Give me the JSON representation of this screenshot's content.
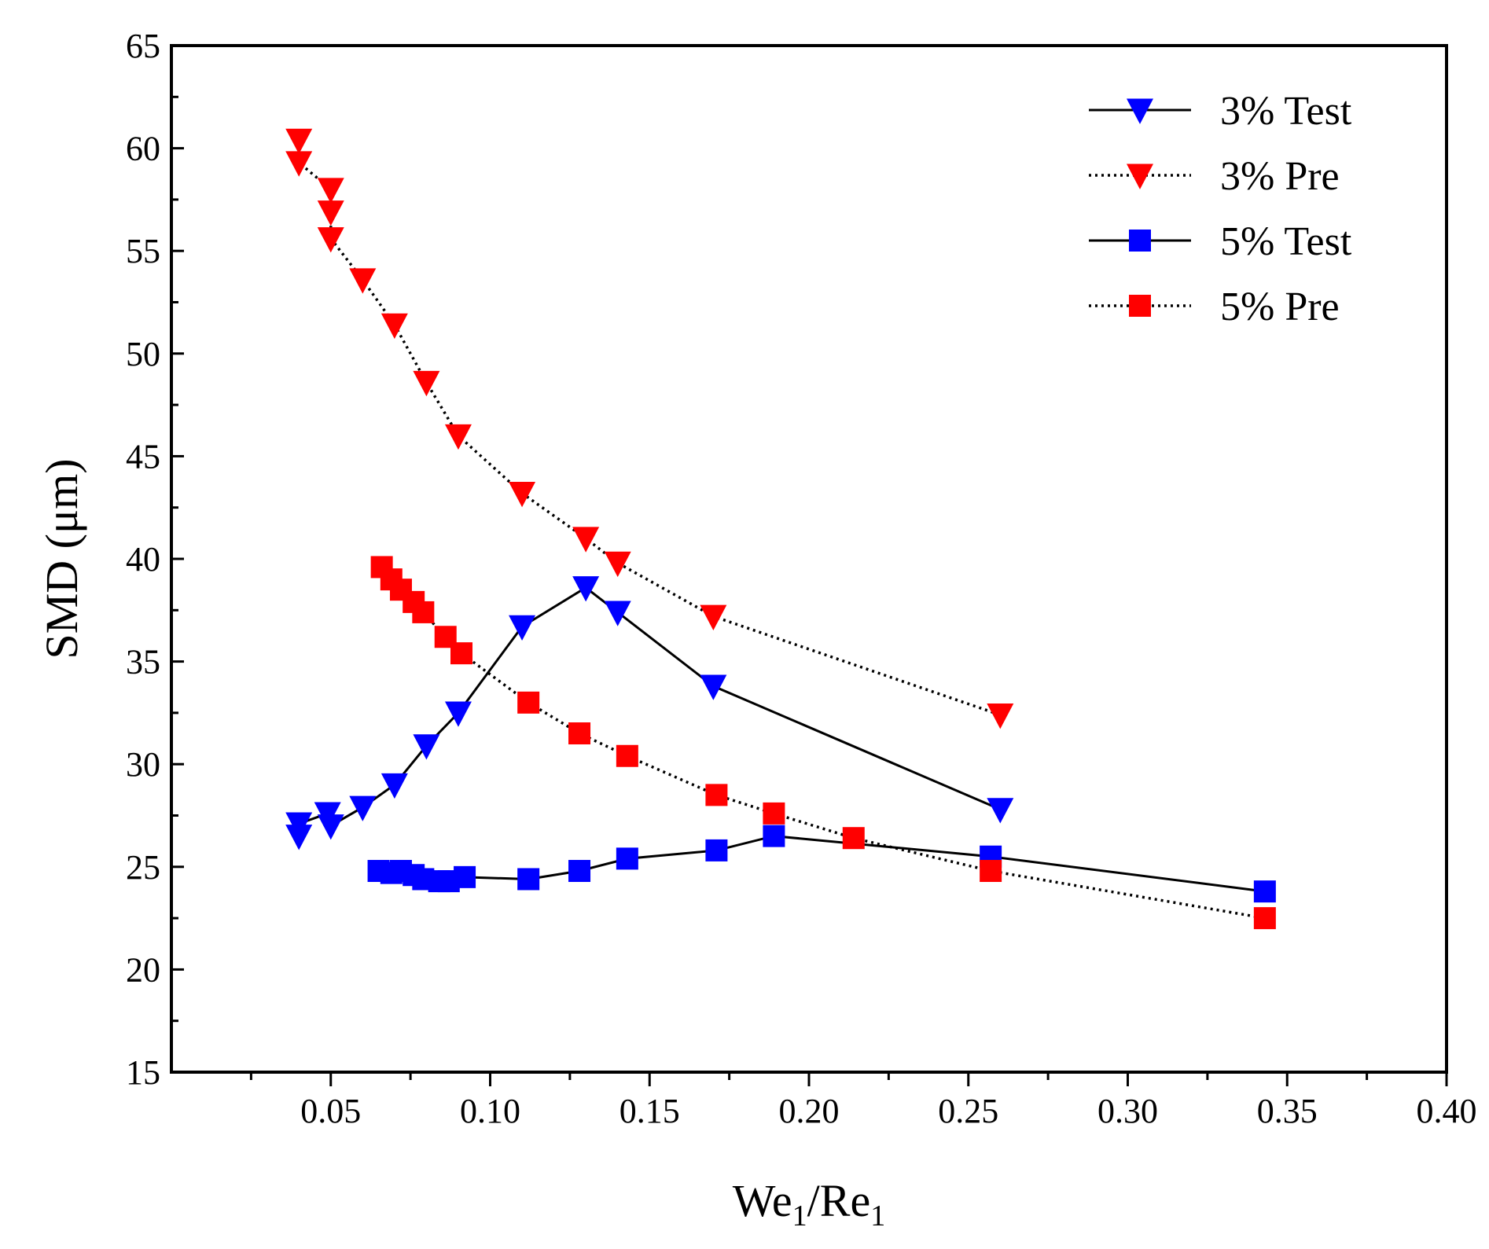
{
  "chart_data": {
    "type": "line",
    "title": "",
    "xlabel": {
      "main": "We",
      "sub1": "1",
      "sep": "/Re",
      "sub2": "1"
    },
    "ylabel": "SMD (μm)",
    "xlim": [
      0,
      0.4
    ],
    "ylim": [
      15,
      65
    ],
    "x_ticks": [
      0.05,
      0.1,
      0.15,
      0.2,
      0.25,
      0.3,
      0.35,
      0.4
    ],
    "x_tick_labels": [
      "0.05",
      "0.10",
      "0.15",
      "0.20",
      "0.25",
      "0.30",
      "0.35",
      "0.40"
    ],
    "x_minor_ticks": [
      0.025,
      0.075,
      0.125,
      0.175,
      0.225,
      0.275,
      0.325,
      0.375
    ],
    "y_ticks": [
      15,
      20,
      25,
      30,
      35,
      40,
      45,
      50,
      55,
      60,
      65
    ],
    "y_tick_labels": [
      "15",
      "20",
      "25",
      "30",
      "35",
      "40",
      "45",
      "50",
      "55",
      "60",
      "65"
    ],
    "y_minor_ticks": [
      17.5,
      22.5,
      27.5,
      32.5,
      37.5,
      42.5,
      47.5,
      52.5,
      57.5,
      62.5
    ],
    "grid": false,
    "legend_position": "top-right",
    "series": [
      {
        "name": "3% Test",
        "color": "#0000ff",
        "marker": "triangle-down",
        "line_style": "solid",
        "x": [
          0.04,
          0.04,
          0.049,
          0.05,
          0.06,
          0.07,
          0.08,
          0.09,
          0.11,
          0.13,
          0.14,
          0.17,
          0.26
        ],
        "y": [
          26.5,
          27.1,
          27.6,
          27.0,
          27.9,
          29.0,
          30.9,
          32.5,
          36.7,
          38.6,
          37.4,
          33.8,
          27.8
        ]
      },
      {
        "name": "3% Pre",
        "color": "#ff0000",
        "marker": "triangle-down",
        "line_style": "dotted",
        "x": [
          0.04,
          0.04,
          0.05,
          0.05,
          0.05,
          0.06,
          0.07,
          0.08,
          0.09,
          0.11,
          0.13,
          0.14,
          0.17,
          0.26
        ],
        "y": [
          60.4,
          59.3,
          58.0,
          56.9,
          55.6,
          53.6,
          51.4,
          48.6,
          46.0,
          43.2,
          41.0,
          39.8,
          37.2,
          32.4
        ]
      },
      {
        "name": "5% Test",
        "color": "#0000ff",
        "marker": "square",
        "line_style": "solid",
        "x": [
          0.065,
          0.069,
          0.072,
          0.076,
          0.079,
          0.084,
          0.087,
          0.092,
          0.112,
          0.128,
          0.143,
          0.171,
          0.189,
          0.257,
          0.343
        ],
        "y": [
          24.8,
          24.7,
          24.8,
          24.6,
          24.4,
          24.3,
          24.3,
          24.5,
          24.4,
          24.8,
          25.4,
          25.8,
          26.5,
          25.5,
          23.8
        ]
      },
      {
        "name": "5% Pre",
        "color": "#ff0000",
        "marker": "square",
        "line_style": "dotted",
        "x": [
          0.066,
          0.069,
          0.072,
          0.076,
          0.079,
          0.086,
          0.091,
          0.112,
          0.128,
          0.143,
          0.171,
          0.189,
          0.214,
          0.257,
          0.343
        ],
        "y": [
          39.6,
          39.0,
          38.5,
          37.9,
          37.4,
          36.2,
          35.4,
          33.0,
          31.5,
          30.4,
          28.5,
          27.6,
          26.4,
          24.8,
          22.5
        ]
      }
    ]
  }
}
